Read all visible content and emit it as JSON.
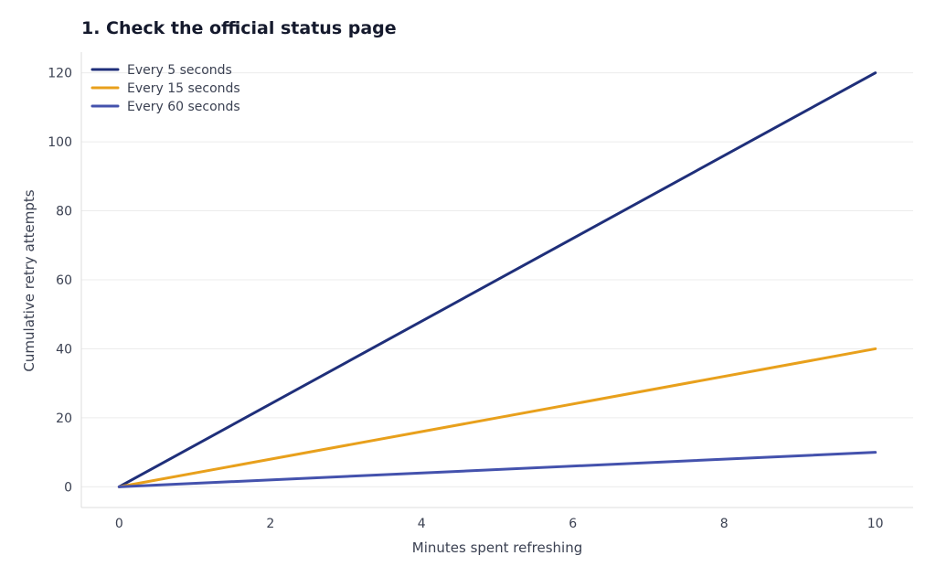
{
  "chart_data": {
    "type": "line",
    "title": "1. Check the official status page",
    "xlabel": "Minutes spent refreshing",
    "ylabel": "Cumulative retry attempts",
    "xlim": [
      -0.5,
      10.5
    ],
    "ylim": [
      -6,
      126
    ],
    "xticks": [
      0,
      2,
      4,
      6,
      8,
      10
    ],
    "yticks": [
      0,
      20,
      40,
      60,
      80,
      100,
      120
    ],
    "grid": "horizontal",
    "legend_position": "top-left",
    "series": [
      {
        "name": "Every 5 seconds",
        "color": "#1f2f7a",
        "x": [
          0,
          10
        ],
        "y": [
          0,
          120
        ]
      },
      {
        "name": "Every 15 seconds",
        "color": "#e8a01c",
        "x": [
          0,
          10
        ],
        "y": [
          0,
          40
        ]
      },
      {
        "name": "Every 60 seconds",
        "color": "#4452ad",
        "x": [
          0,
          10
        ],
        "y": [
          0,
          10
        ]
      }
    ]
  }
}
